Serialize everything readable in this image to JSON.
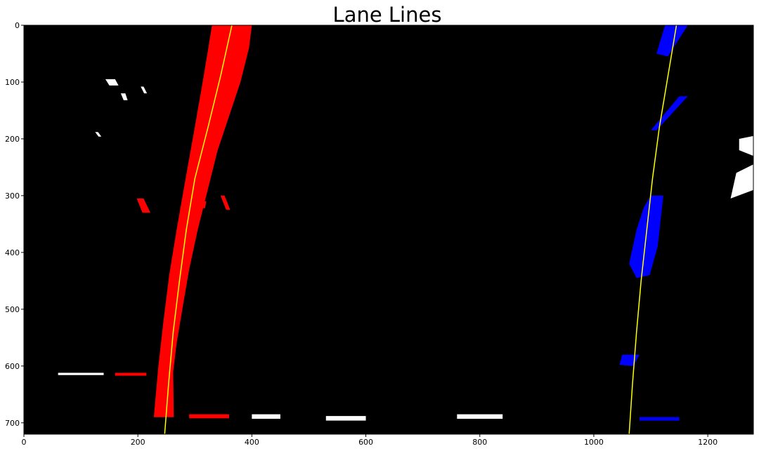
{
  "chart_data": {
    "type": "line",
    "title": "Lane Lines",
    "xlabel": "",
    "ylabel": "",
    "xlim": [
      0,
      1280
    ],
    "ylim": [
      720,
      0
    ],
    "x_ticks": [
      0,
      200,
      400,
      600,
      800,
      1000,
      1200
    ],
    "y_ticks": [
      0,
      100,
      200,
      300,
      400,
      500,
      600,
      700
    ],
    "background_color": "#000000",
    "grid": false,
    "series": [
      {
        "role": "left-lane-fit",
        "color": "#ffff00",
        "points": [
          [
            365,
            0
          ],
          [
            345,
            90
          ],
          [
            323,
            180
          ],
          [
            300,
            270
          ],
          [
            285,
            360
          ],
          [
            273,
            450
          ],
          [
            262,
            540
          ],
          [
            254,
            630
          ],
          [
            247,
            720
          ]
        ]
      },
      {
        "role": "right-lane-fit",
        "color": "#ffff00",
        "points": [
          [
            1145,
            0
          ],
          [
            1130,
            90
          ],
          [
            1115,
            180
          ],
          [
            1103,
            270
          ],
          [
            1093,
            360
          ],
          [
            1083,
            450
          ],
          [
            1075,
            540
          ],
          [
            1068,
            630
          ],
          [
            1062,
            720
          ]
        ]
      }
    ],
    "pixel_regions": [
      {
        "role": "left-lane-pixels",
        "color": "#ff0000",
        "outline": [
          [
            330,
            0
          ],
          [
            400,
            0
          ],
          [
            395,
            40
          ],
          [
            380,
            100
          ],
          [
            355,
            175
          ],
          [
            340,
            220
          ],
          [
            320,
            300
          ],
          [
            305,
            360
          ],
          [
            290,
            430
          ],
          [
            278,
            500
          ],
          [
            268,
            560
          ],
          [
            262,
            610
          ],
          [
            263,
            690
          ],
          [
            228,
            690
          ],
          [
            236,
            600
          ],
          [
            245,
            520
          ],
          [
            255,
            440
          ],
          [
            268,
            360
          ],
          [
            282,
            280
          ],
          [
            298,
            190
          ],
          [
            312,
            110
          ],
          [
            322,
            50
          ]
        ]
      },
      {
        "role": "right-lane-pixels",
        "color": "#0000ff",
        "outline": [
          [
            1100,
            300
          ],
          [
            1122,
            300
          ],
          [
            1112,
            390
          ],
          [
            1098,
            440
          ],
          [
            1075,
            445
          ],
          [
            1062,
            420
          ],
          [
            1075,
            360
          ],
          [
            1088,
            320
          ]
        ]
      },
      {
        "role": "right-lane-pixels",
        "color": "#0000ff",
        "outline": [
          [
            1125,
            0
          ],
          [
            1165,
            0
          ],
          [
            1130,
            55
          ],
          [
            1110,
            50
          ]
        ]
      },
      {
        "role": "right-lane-pixels",
        "color": "#0000ff",
        "outline": [
          [
            1150,
            125
          ],
          [
            1165,
            125
          ],
          [
            1110,
            185
          ],
          [
            1100,
            185
          ]
        ]
      },
      {
        "role": "right-lane-pixels",
        "color": "#0000ff",
        "outline": [
          [
            1050,
            580
          ],
          [
            1080,
            580
          ],
          [
            1070,
            600
          ],
          [
            1045,
            598
          ]
        ]
      },
      {
        "role": "noise-pixels",
        "color": "#ffffff",
        "outline": [
          [
            1255,
            200
          ],
          [
            1280,
            195
          ],
          [
            1280,
            230
          ],
          [
            1255,
            220
          ]
        ]
      },
      {
        "role": "noise-pixels",
        "color": "#ffffff",
        "outline": [
          [
            1250,
            260
          ],
          [
            1280,
            245
          ],
          [
            1280,
            290
          ],
          [
            1240,
            305
          ]
        ]
      },
      {
        "role": "noise-pixels",
        "color": "#ffffff",
        "outline": [
          [
            143,
            95
          ],
          [
            160,
            95
          ],
          [
            166,
            106
          ],
          [
            150,
            106
          ]
        ]
      },
      {
        "role": "noise-pixels",
        "color": "#ffffff",
        "outline": [
          [
            170,
            120
          ],
          [
            178,
            120
          ],
          [
            182,
            132
          ],
          [
            175,
            132
          ]
        ]
      },
      {
        "role": "noise-pixels",
        "color": "#ffffff",
        "outline": [
          [
            205,
            108
          ],
          [
            210,
            108
          ],
          [
            216,
            120
          ],
          [
            211,
            120
          ]
        ]
      },
      {
        "role": "noise-pixels",
        "color": "#ffffff",
        "outline": [
          [
            125,
            188
          ],
          [
            130,
            188
          ],
          [
            136,
            196
          ],
          [
            131,
            196
          ]
        ]
      },
      {
        "role": "noise-pixels",
        "color": "#ff0000",
        "outline": [
          [
            198,
            305
          ],
          [
            210,
            305
          ],
          [
            222,
            330
          ],
          [
            208,
            330
          ]
        ]
      },
      {
        "role": "noise-pixels",
        "color": "#ff0000",
        "outline": [
          [
            345,
            300
          ],
          [
            352,
            300
          ],
          [
            362,
            325
          ],
          [
            355,
            325
          ]
        ]
      },
      {
        "role": "noise-pixels",
        "color": "#ff0000",
        "outline": [
          [
            312,
            310
          ],
          [
            320,
            310
          ],
          [
            318,
            322
          ],
          [
            310,
            322
          ]
        ]
      },
      {
        "role": "noise-pixels",
        "color": "#ffffff",
        "outline": [
          [
            400,
            685
          ],
          [
            450,
            685
          ],
          [
            450,
            693
          ],
          [
            400,
            693
          ]
        ]
      },
      {
        "role": "noise-pixels",
        "color": "#ffffff",
        "outline": [
          [
            530,
            688
          ],
          [
            600,
            688
          ],
          [
            600,
            696
          ],
          [
            530,
            696
          ]
        ]
      },
      {
        "role": "noise-pixels",
        "color": "#ffffff",
        "outline": [
          [
            760,
            685
          ],
          [
            840,
            685
          ],
          [
            840,
            693
          ],
          [
            760,
            693
          ]
        ]
      },
      {
        "role": "noise-pixels",
        "color": "#ffffff",
        "outline": [
          [
            60,
            612
          ],
          [
            140,
            612
          ],
          [
            140,
            616
          ],
          [
            60,
            616
          ]
        ]
      },
      {
        "role": "noise-pixels",
        "color": "#ff0000",
        "outline": [
          [
            160,
            612
          ],
          [
            215,
            612
          ],
          [
            215,
            617
          ],
          [
            160,
            617
          ]
        ]
      },
      {
        "role": "noise-pixels",
        "color": "#ff0000",
        "outline": [
          [
            290,
            685
          ],
          [
            360,
            685
          ],
          [
            360,
            692
          ],
          [
            290,
            692
          ]
        ]
      },
      {
        "role": "noise-pixels",
        "color": "#0000ff",
        "outline": [
          [
            1080,
            690
          ],
          [
            1150,
            690
          ],
          [
            1150,
            696
          ],
          [
            1080,
            696
          ]
        ]
      }
    ]
  }
}
